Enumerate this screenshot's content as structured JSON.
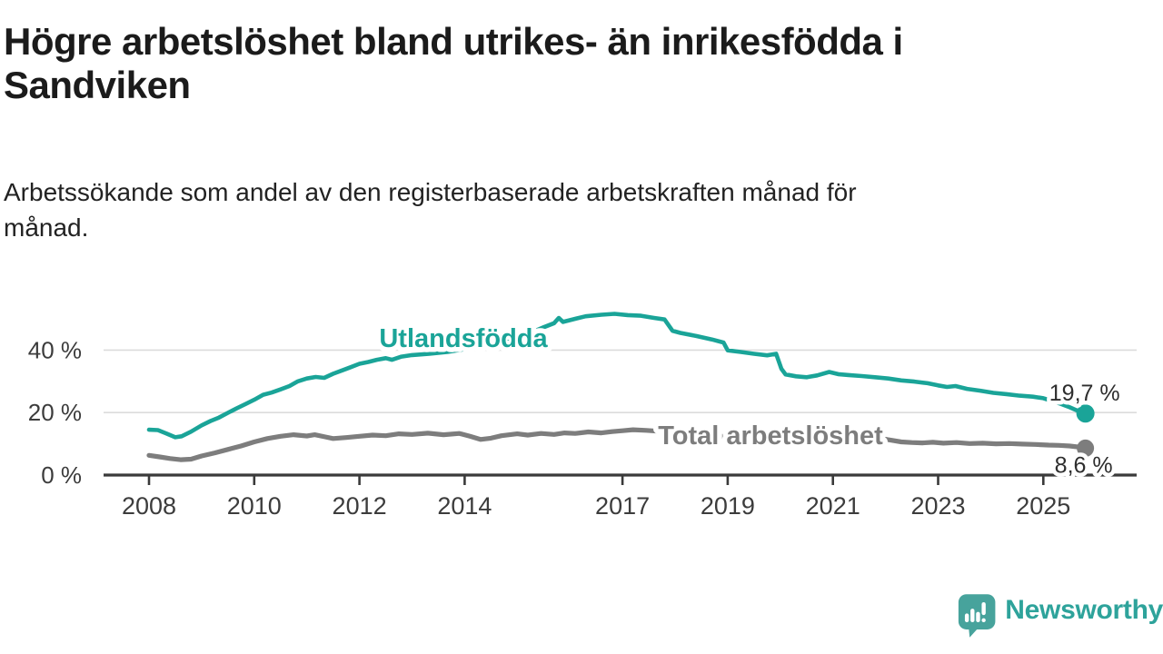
{
  "header": {
    "title_lines": [
      "Högre arbetslöshet bland utrikes- än inrikesfödda i",
      "Sandviken"
    ],
    "title": "Högre arbetslöshet bland utrikes- än inrikesfödda i Sandviken",
    "subtitle_lines": [
      "Arbetssökande som andel av den registerbaserade arbetskraften månad för",
      "månad."
    ],
    "subtitle": "Arbetssökande som andel av den registerbaserade arbetskraften månad för månad."
  },
  "footer": {
    "brand": "Newsworthy",
    "logo_icon": "speech-bubble-bar-chart-icon"
  },
  "colors": {
    "accent_teal": "#1aa498",
    "series_gray": "#7d7d7d",
    "axis": "#3a3a3a",
    "grid": "#dcdcdc",
    "tick_text": "#3c3c3c",
    "annotation_text": "#2e2e2e",
    "logo_teal": "#2ea39b",
    "logo_icon_teal": "#47a39c"
  },
  "chart_data": {
    "type": "line",
    "unit": "%",
    "title": "Högre arbetslöshet bland utrikes- än inrikesfödda i Sandviken",
    "subtitle": "Arbetssökande som andel av den registerbaserade arbetskraften månad för månad.",
    "xlabel": "",
    "ylabel": "",
    "x_range": [
      2007.6,
      2026.3
    ],
    "ylim": [
      0,
      55
    ],
    "grid": "horizontal",
    "legend_position": "inline-labels",
    "y_ticks": [
      {
        "value": 0,
        "label": "0 %"
      },
      {
        "value": 20,
        "label": "20 %"
      },
      {
        "value": 40,
        "label": "40 %"
      }
    ],
    "x_ticks": [
      {
        "value": 2008,
        "label": "2008"
      },
      {
        "value": 2010,
        "label": "2010"
      },
      {
        "value": 2012,
        "label": "2012"
      },
      {
        "value": 2014,
        "label": "2014"
      },
      {
        "value": 2017,
        "label": "2017"
      },
      {
        "value": 2019,
        "label": "2019"
      },
      {
        "value": 2021,
        "label": "2021"
      },
      {
        "value": 2023,
        "label": "2023"
      },
      {
        "value": 2025,
        "label": "2025"
      }
    ],
    "series": [
      {
        "name": "Utlandsfödda",
        "color": "#1aa498",
        "end_label": "19,7 %",
        "end_value": 19.7,
        "points": [
          [
            2008.0,
            14.5
          ],
          [
            2008.17,
            14.4
          ],
          [
            2008.33,
            13.3
          ],
          [
            2008.5,
            12.1
          ],
          [
            2008.62,
            12.4
          ],
          [
            2008.8,
            13.9
          ],
          [
            2009.0,
            15.9
          ],
          [
            2009.17,
            17.3
          ],
          [
            2009.33,
            18.4
          ],
          [
            2009.5,
            19.9
          ],
          [
            2009.67,
            21.4
          ],
          [
            2009.83,
            22.7
          ],
          [
            2010.0,
            24.1
          ],
          [
            2010.17,
            25.7
          ],
          [
            2010.33,
            26.4
          ],
          [
            2010.5,
            27.4
          ],
          [
            2010.67,
            28.5
          ],
          [
            2010.83,
            30.0
          ],
          [
            2011.0,
            30.9
          ],
          [
            2011.17,
            31.4
          ],
          [
            2011.33,
            31.1
          ],
          [
            2011.5,
            32.4
          ],
          [
            2011.67,
            33.5
          ],
          [
            2011.83,
            34.5
          ],
          [
            2012.0,
            35.6
          ],
          [
            2012.17,
            36.2
          ],
          [
            2012.33,
            36.9
          ],
          [
            2012.5,
            37.4
          ],
          [
            2012.62,
            36.9
          ],
          [
            2012.8,
            37.9
          ],
          [
            2013.0,
            38.4
          ],
          [
            2013.33,
            38.8
          ],
          [
            2013.67,
            39.4
          ],
          [
            2014.0,
            40.3
          ],
          [
            2014.33,
            41.4
          ],
          [
            2014.67,
            42.7
          ],
          [
            2015.0,
            44.0
          ],
          [
            2015.25,
            45.5
          ],
          [
            2015.5,
            47.3
          ],
          [
            2015.7,
            48.6
          ],
          [
            2015.79,
            50.3
          ],
          [
            2015.87,
            49.0
          ],
          [
            2016.1,
            50.0
          ],
          [
            2016.3,
            50.8
          ],
          [
            2016.6,
            51.3
          ],
          [
            2016.85,
            51.6
          ],
          [
            2017.1,
            51.2
          ],
          [
            2017.35,
            51.0
          ],
          [
            2017.6,
            50.3
          ],
          [
            2017.8,
            49.8
          ],
          [
            2017.95,
            46.2
          ],
          [
            2018.1,
            45.5
          ],
          [
            2018.4,
            44.5
          ],
          [
            2018.7,
            43.4
          ],
          [
            2018.92,
            42.4
          ],
          [
            2019.0,
            39.9
          ],
          [
            2019.25,
            39.4
          ],
          [
            2019.5,
            38.8
          ],
          [
            2019.75,
            38.3
          ],
          [
            2019.92,
            38.8
          ],
          [
            2020.02,
            34.0
          ],
          [
            2020.1,
            32.2
          ],
          [
            2020.3,
            31.6
          ],
          [
            2020.5,
            31.3
          ],
          [
            2020.7,
            31.9
          ],
          [
            2020.93,
            33.0
          ],
          [
            2021.1,
            32.3
          ],
          [
            2021.3,
            32.0
          ],
          [
            2021.55,
            31.7
          ],
          [
            2021.8,
            31.3
          ],
          [
            2022.05,
            30.9
          ],
          [
            2022.3,
            30.3
          ],
          [
            2022.55,
            29.9
          ],
          [
            2022.8,
            29.4
          ],
          [
            2023.0,
            28.7
          ],
          [
            2023.17,
            28.2
          ],
          [
            2023.33,
            28.5
          ],
          [
            2023.55,
            27.6
          ],
          [
            2023.8,
            27.0
          ],
          [
            2024.05,
            26.3
          ],
          [
            2024.3,
            25.9
          ],
          [
            2024.55,
            25.4
          ],
          [
            2024.8,
            25.1
          ],
          [
            2025.0,
            24.6
          ],
          [
            2025.17,
            23.7
          ],
          [
            2025.33,
            22.8
          ],
          [
            2025.5,
            21.7
          ],
          [
            2025.65,
            20.6
          ],
          [
            2025.8,
            19.7
          ]
        ]
      },
      {
        "name": "Total arbetslöshet",
        "color": "#7d7d7d",
        "end_label": "8,6 %",
        "end_value": 8.6,
        "points": [
          [
            2008.0,
            6.3
          ],
          [
            2008.2,
            5.8
          ],
          [
            2008.4,
            5.3
          ],
          [
            2008.6,
            4.9
          ],
          [
            2008.8,
            5.1
          ],
          [
            2009.0,
            6.1
          ],
          [
            2009.25,
            7.1
          ],
          [
            2009.5,
            8.2
          ],
          [
            2009.75,
            9.3
          ],
          [
            2010.0,
            10.6
          ],
          [
            2010.25,
            11.7
          ],
          [
            2010.5,
            12.4
          ],
          [
            2010.75,
            12.9
          ],
          [
            2011.0,
            12.5
          ],
          [
            2011.15,
            12.9
          ],
          [
            2011.35,
            12.2
          ],
          [
            2011.5,
            11.7
          ],
          [
            2011.75,
            12.0
          ],
          [
            2012.0,
            12.4
          ],
          [
            2012.25,
            12.8
          ],
          [
            2012.5,
            12.6
          ],
          [
            2012.75,
            13.2
          ],
          [
            2013.0,
            13.0
          ],
          [
            2013.3,
            13.4
          ],
          [
            2013.6,
            12.9
          ],
          [
            2013.9,
            13.3
          ],
          [
            2014.1,
            12.4
          ],
          [
            2014.3,
            11.4
          ],
          [
            2014.5,
            11.8
          ],
          [
            2014.7,
            12.6
          ],
          [
            2015.0,
            13.2
          ],
          [
            2015.2,
            12.8
          ],
          [
            2015.45,
            13.3
          ],
          [
            2015.7,
            13.0
          ],
          [
            2015.9,
            13.5
          ],
          [
            2016.1,
            13.3
          ],
          [
            2016.35,
            13.8
          ],
          [
            2016.6,
            13.5
          ],
          [
            2016.8,
            13.9
          ],
          [
            2017.0,
            14.2
          ],
          [
            2017.2,
            14.5
          ],
          [
            2017.45,
            14.3
          ],
          [
            2017.7,
            14.0
          ],
          [
            2018.0,
            13.8
          ],
          [
            2018.5,
            13.1
          ],
          [
            2019.0,
            12.2
          ],
          [
            2019.5,
            11.3
          ],
          [
            2019.85,
            10.7
          ],
          [
            2020.05,
            11.1
          ],
          [
            2020.3,
            12.7
          ],
          [
            2020.55,
            13.5
          ],
          [
            2020.8,
            13.8
          ],
          [
            2021.0,
            13.5
          ],
          [
            2021.3,
            13.7
          ],
          [
            2021.55,
            13.2
          ],
          [
            2021.8,
            12.3
          ],
          [
            2022.05,
            11.3
          ],
          [
            2022.3,
            10.6
          ],
          [
            2022.5,
            10.4
          ],
          [
            2022.7,
            10.3
          ],
          [
            2022.9,
            10.5
          ],
          [
            2023.1,
            10.2
          ],
          [
            2023.35,
            10.4
          ],
          [
            2023.6,
            10.1
          ],
          [
            2023.85,
            10.2
          ],
          [
            2024.1,
            10.0
          ],
          [
            2024.35,
            10.1
          ],
          [
            2024.6,
            9.9
          ],
          [
            2024.85,
            9.8
          ],
          [
            2025.1,
            9.6
          ],
          [
            2025.3,
            9.5
          ],
          [
            2025.5,
            9.3
          ],
          [
            2025.65,
            9.0
          ],
          [
            2025.8,
            8.6
          ]
        ]
      }
    ]
  }
}
